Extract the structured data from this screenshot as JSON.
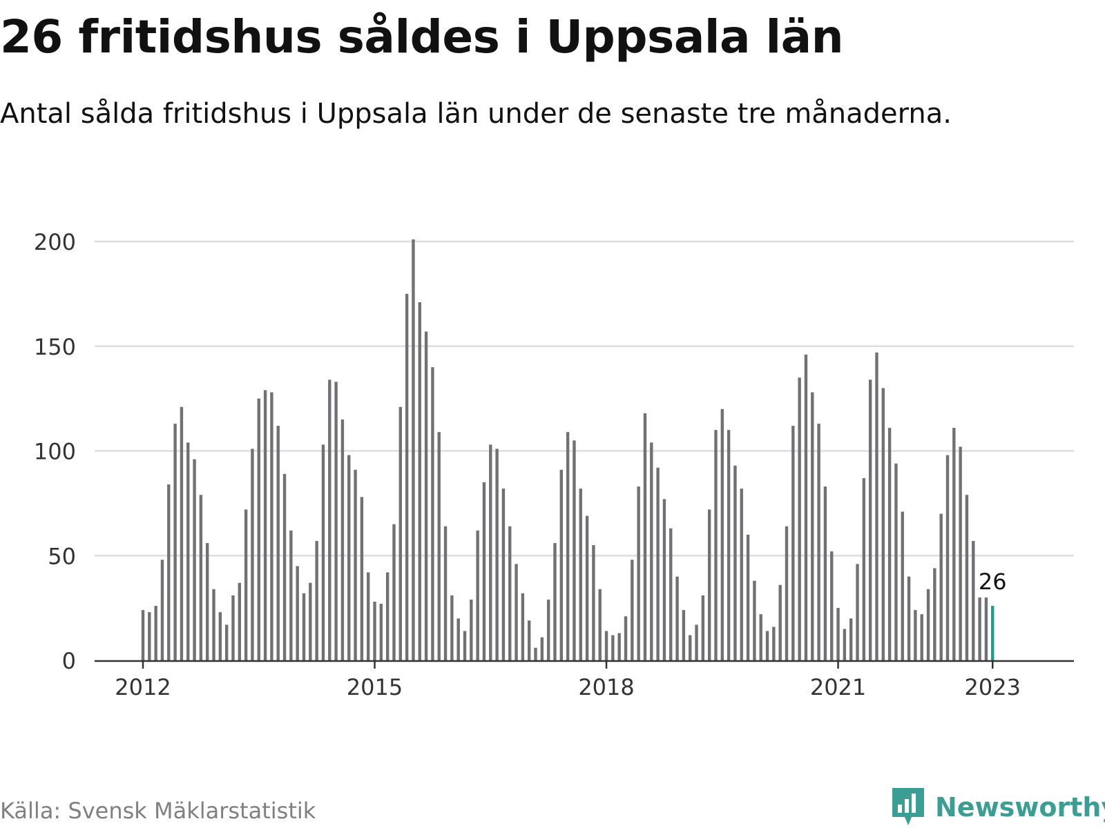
{
  "title": "26 fritidshus såldes i Uppsala län",
  "subtitle": "Antal sålda fritidshus i Uppsala län under de senaste tre månaderna.",
  "source": "Källa: Svensk Mäklarstatistik",
  "logo": {
    "text": "Newsworthy",
    "icon": "newsworthy-logo-icon"
  },
  "colors": {
    "bar": "#707075",
    "highlight": "#16a08c",
    "grid": "#dddddd",
    "axis": "#333333",
    "logo": "#3a9e94"
  },
  "chart_data": {
    "type": "bar",
    "title": "26 fritidshus såldes i Uppsala län",
    "subtitle": "Antal sålda fritidshus i Uppsala län under de senaste tre månaderna.",
    "x_start": "2012-01",
    "x_end": "2023-01",
    "frequency": "monthly",
    "x_ticks": [
      "2012",
      "2015",
      "2018",
      "2021",
      "2023"
    ],
    "y_ticks": [
      0,
      50,
      100,
      150,
      200
    ],
    "ylim": [
      0,
      200
    ],
    "grid": true,
    "values": [
      24,
      23,
      26,
      48,
      84,
      113,
      121,
      104,
      96,
      79,
      56,
      34,
      23,
      17,
      31,
      37,
      72,
      101,
      125,
      129,
      128,
      112,
      89,
      62,
      45,
      32,
      37,
      57,
      103,
      134,
      133,
      115,
      98,
      91,
      78,
      42,
      28,
      27,
      42,
      65,
      121,
      175,
      201,
      171,
      157,
      140,
      109,
      64,
      31,
      20,
      14,
      29,
      62,
      85,
      103,
      101,
      82,
      64,
      46,
      32,
      19,
      6,
      11,
      29,
      56,
      91,
      109,
      105,
      82,
      69,
      55,
      34,
      14,
      12,
      13,
      21,
      48,
      83,
      118,
      104,
      92,
      77,
      63,
      40,
      24,
      12,
      17,
      31,
      72,
      110,
      120,
      110,
      93,
      82,
      60,
      38,
      22,
      14,
      16,
      36,
      64,
      112,
      135,
      146,
      128,
      113,
      83,
      52,
      25,
      15,
      20,
      46,
      87,
      134,
      147,
      130,
      111,
      94,
      71,
      40,
      24,
      22,
      34,
      44,
      70,
      98,
      111,
      102,
      79,
      57,
      30,
      30,
      26
    ],
    "highlight_index": 132,
    "annotation": {
      "label": "26",
      "value": 26,
      "date": "2023-01"
    }
  }
}
